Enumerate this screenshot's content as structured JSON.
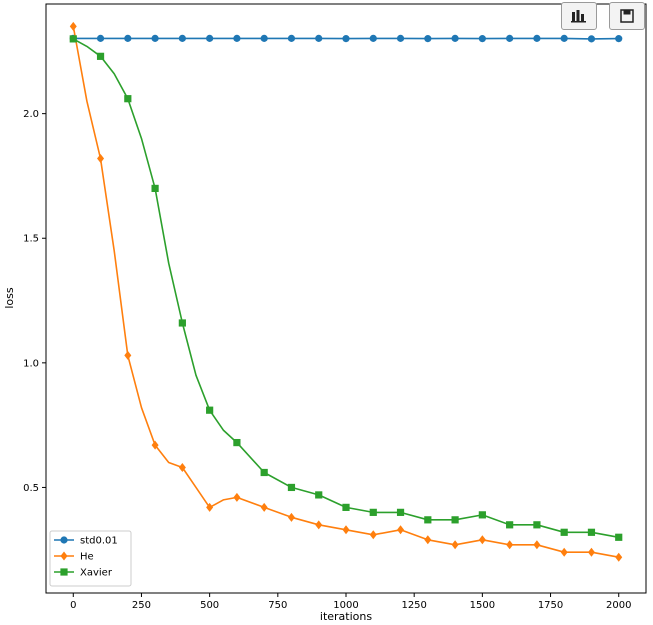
{
  "toolbar": {
    "chart_icon": "bar-chart-icon",
    "save_icon": "floppy-disk-icon"
  },
  "chart_data": {
    "type": "line",
    "title": "",
    "xlabel": "iterations",
    "ylabel": "loss",
    "xlim": [
      -100,
      2100
    ],
    "ylim": [
      0.0764,
      2.44
    ],
    "xticks": [
      0,
      250,
      500,
      750,
      1000,
      1250,
      1500,
      1750,
      2000
    ],
    "xtick_labels": [
      "0",
      "250",
      "500",
      "750",
      "1000",
      "1250",
      "1500",
      "1750",
      "2000"
    ],
    "yticks": [
      0.5,
      1.0,
      1.5,
      2.0
    ],
    "ytick_labels": [
      "0.5",
      "1.0",
      "1.5",
      "2.0"
    ],
    "grid": false,
    "legend_position": "lower-left",
    "series": [
      {
        "name": "std0.01",
        "color": "#1f77b4",
        "marker": "circle",
        "x": [
          0,
          100,
          200,
          300,
          400,
          500,
          600,
          700,
          800,
          900,
          1000,
          1100,
          1200,
          1300,
          1400,
          1500,
          1600,
          1700,
          1800,
          1900,
          2000
        ],
        "values": [
          2.302,
          2.302,
          2.302,
          2.302,
          2.302,
          2.302,
          2.302,
          2.302,
          2.302,
          2.302,
          2.301,
          2.302,
          2.302,
          2.301,
          2.302,
          2.301,
          2.302,
          2.302,
          2.302,
          2.3,
          2.301
        ]
      },
      {
        "name": "He",
        "color": "#ff7f0e",
        "marker": "diamond",
        "x": [
          0,
          50,
          100,
          150,
          200,
          250,
          300,
          350,
          400,
          450,
          500,
          550,
          600,
          700,
          800,
          900,
          1000,
          1100,
          1200,
          1300,
          1400,
          1500,
          1600,
          1700,
          1800,
          1900,
          2000
        ],
        "values": [
          2.35,
          2.05,
          1.82,
          1.45,
          1.03,
          0.82,
          0.67,
          0.6,
          0.58,
          0.5,
          0.42,
          0.45,
          0.46,
          0.42,
          0.38,
          0.35,
          0.33,
          0.31,
          0.33,
          0.29,
          0.27,
          0.29,
          0.27,
          0.27,
          0.24,
          0.24,
          0.22
        ]
      },
      {
        "name": "Xavier",
        "color": "#2ca02c",
        "marker": "square",
        "x": [
          0,
          50,
          100,
          150,
          200,
          250,
          300,
          350,
          400,
          450,
          500,
          550,
          600,
          700,
          800,
          900,
          1000,
          1100,
          1200,
          1300,
          1400,
          1500,
          1600,
          1700,
          1800,
          1900,
          2000
        ],
        "values": [
          2.3,
          2.27,
          2.23,
          2.16,
          2.06,
          1.9,
          1.7,
          1.4,
          1.16,
          0.95,
          0.81,
          0.73,
          0.68,
          0.56,
          0.5,
          0.47,
          0.42,
          0.4,
          0.4,
          0.37,
          0.37,
          0.39,
          0.35,
          0.35,
          0.32,
          0.32,
          0.3
        ]
      }
    ]
  }
}
